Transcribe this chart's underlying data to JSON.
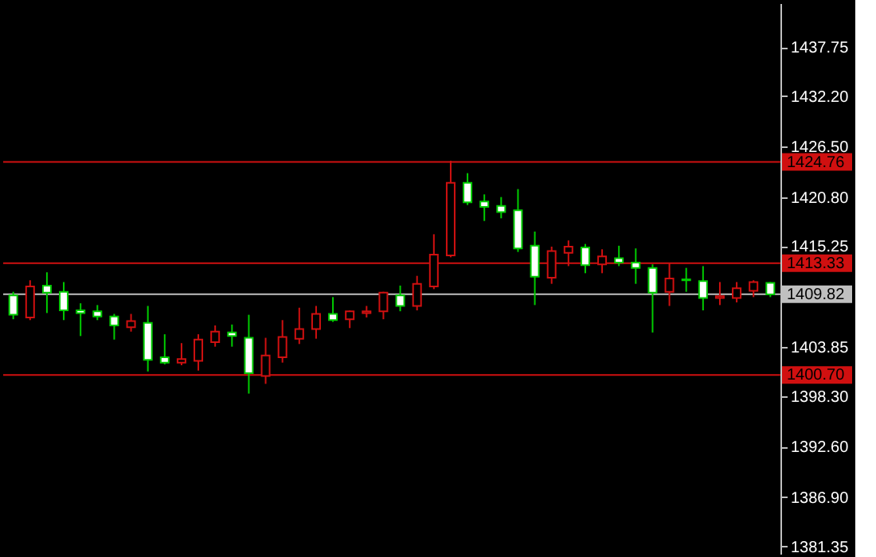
{
  "chart_data": {
    "type": "candlestick",
    "categories": [
      null,
      null,
      null,
      null,
      null,
      null,
      null,
      null,
      null,
      null,
      null,
      null,
      null,
      null,
      null,
      null,
      null,
      null,
      null,
      null,
      null,
      null,
      null,
      null,
      null,
      null,
      null,
      null,
      null,
      null,
      null,
      null,
      null,
      null,
      null,
      null,
      null,
      null,
      null,
      null,
      null,
      null,
      null,
      null,
      null,
      null
    ],
    "ohlc": [
      [
        1409.7,
        1410.1,
        1407.0,
        1407.5
      ],
      [
        1407.2,
        1411.4,
        1406.9,
        1410.7
      ],
      [
        1410.8,
        1412.3,
        1407.7,
        1410.0
      ],
      [
        1410.1,
        1411.2,
        1406.9,
        1408.0
      ],
      [
        1408.0,
        1408.8,
        1405.1,
        1407.7
      ],
      [
        1407.9,
        1408.6,
        1406.9,
        1407.3
      ],
      [
        1407.3,
        1407.6,
        1404.7,
        1406.3
      ],
      [
        1406.1,
        1407.6,
        1405.6,
        1406.8
      ],
      [
        1406.6,
        1408.5,
        1401.1,
        1402.4
      ],
      [
        1402.7,
        1405.3,
        1401.9,
        1402.1
      ],
      [
        1402.1,
        1404.3,
        1401.8,
        1402.5
      ],
      [
        1402.3,
        1405.3,
        1401.2,
        1404.7
      ],
      [
        1404.4,
        1406.3,
        1403.9,
        1405.6
      ],
      [
        1405.5,
        1406.4,
        1403.9,
        1405.1
      ],
      [
        1404.9,
        1407.5,
        1398.6,
        1400.9
      ],
      [
        1400.6,
        1404.9,
        1399.7,
        1402.9
      ],
      [
        1402.7,
        1406.9,
        1402.1,
        1405.0
      ],
      [
        1404.8,
        1408.3,
        1404.2,
        1405.9
      ],
      [
        1405.9,
        1408.5,
        1404.8,
        1407.6
      ],
      [
        1407.6,
        1409.5,
        1406.7,
        1406.9
      ],
      [
        1407.0,
        1408.0,
        1406.0,
        1407.9
      ],
      [
        1407.7,
        1408.5,
        1407.2,
        1407.9
      ],
      [
        1407.9,
        1410.1,
        1407.0,
        1410.0
      ],
      [
        1409.7,
        1410.8,
        1407.9,
        1408.5
      ],
      [
        1408.5,
        1411.9,
        1408.0,
        1411.0
      ],
      [
        1410.7,
        1416.6,
        1410.4,
        1414.3
      ],
      [
        1414.2,
        1424.9,
        1414.0,
        1422.4
      ],
      [
        1422.4,
        1423.5,
        1419.9,
        1420.2
      ],
      [
        1420.3,
        1421.1,
        1418.1,
        1419.7
      ],
      [
        1419.8,
        1420.8,
        1418.4,
        1419.1
      ],
      [
        1419.3,
        1421.7,
        1414.6,
        1415.0
      ],
      [
        1415.3,
        1416.9,
        1408.6,
        1411.8
      ],
      [
        1411.7,
        1415.2,
        1411.0,
        1414.7
      ],
      [
        1414.5,
        1415.9,
        1413.0,
        1415.2
      ],
      [
        1415.1,
        1415.5,
        1412.2,
        1413.1
      ],
      [
        1413.2,
        1414.9,
        1412.2,
        1414.1
      ],
      [
        1413.9,
        1415.3,
        1413.0,
        1413.4
      ],
      [
        1413.4,
        1415.0,
        1411.0,
        1412.8
      ],
      [
        1412.8,
        1413.2,
        1405.5,
        1410.0
      ],
      [
        1410.1,
        1413.4,
        1408.5,
        1411.6
      ],
      [
        1411.5,
        1412.8,
        1410.1,
        1411.4
      ],
      [
        1411.3,
        1413.0,
        1408.0,
        1409.4
      ],
      [
        1409.4,
        1411.2,
        1408.6,
        1409.6
      ],
      [
        1409.4,
        1411.2,
        1408.9,
        1410.5
      ],
      [
        1410.2,
        1411.4,
        1409.5,
        1411.2
      ],
      [
        1411.1,
        1411.2,
        1409.5,
        1409.8
      ]
    ],
    "ylim": [
      1380.5,
      1442.7
    ],
    "yticks": [
      1437.75,
      {
        "value": 1432.2,
        "label": "1432.20"
      },
      {
        "value": 1426.5,
        "label": "1426.50"
      },
      {
        "value": 1420.8,
        "label": "1420.80"
      },
      1415.25,
      1403.85,
      {
        "value": 1398.3,
        "label": "1398.30"
      },
      {
        "value": 1392.6,
        "label": "1392.60"
      },
      {
        "value": 1386.9,
        "label": "1386.90"
      },
      1381.35
    ],
    "ref_lines": [
      {
        "axis": "y",
        "value": 1424.76,
        "label": "1424.76",
        "color": "#d01010"
      },
      {
        "axis": "y",
        "value": 1413.33,
        "label": "1413.33",
        "color": "#d01010"
      },
      {
        "axis": "y",
        "value": 1409.82,
        "label": "1409.82",
        "color": "#c0c0c0"
      },
      {
        "axis": "y",
        "value": 1400.7,
        "label": "1400.70",
        "color": "#d01010"
      }
    ],
    "tick_labels": "y"
  }
}
